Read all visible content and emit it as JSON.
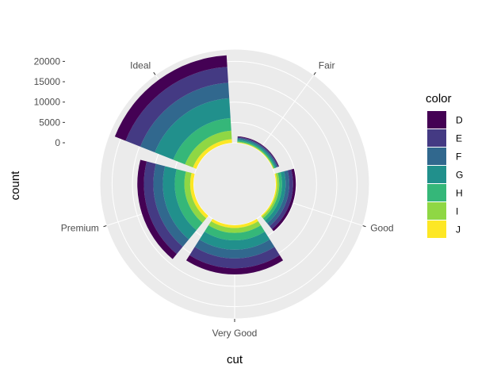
{
  "chart_data": {
    "type": "bar",
    "coord": "polar",
    "xlabel": "cut",
    "ylabel": "count",
    "categories": [
      "Fair",
      "Good",
      "Very Good",
      "Premium",
      "Ideal"
    ],
    "series": [
      {
        "name": "D",
        "values": [
          163,
          662,
          1513,
          1603,
          2834
        ]
      },
      {
        "name": "E",
        "values": [
          224,
          933,
          2400,
          2337,
          3903
        ]
      },
      {
        "name": "F",
        "values": [
          312,
          909,
          2164,
          2331,
          3826
        ]
      },
      {
        "name": "G",
        "values": [
          314,
          871,
          2299,
          2924,
          4884
        ]
      },
      {
        "name": "H",
        "values": [
          303,
          702,
          1824,
          2360,
          3115
        ]
      },
      {
        "name": "I",
        "values": [
          175,
          522,
          1204,
          1428,
          2093
        ]
      },
      {
        "name": "J",
        "values": [
          119,
          307,
          678,
          808,
          896
        ]
      }
    ],
    "y_ticks": [
      0,
      5000,
      10000,
      15000,
      20000
    ],
    "ylim": [
      0,
      23000
    ],
    "legend": {
      "title": "color",
      "position": "right"
    },
    "colors": {
      "D": "#440154",
      "E": "#443A83",
      "F": "#31688E",
      "G": "#21908C",
      "H": "#35B779",
      "I": "#8FD744",
      "J": "#FDE725"
    },
    "panel_background": "#ebebeb",
    "grid_color": "#ffffff",
    "grid": true
  }
}
